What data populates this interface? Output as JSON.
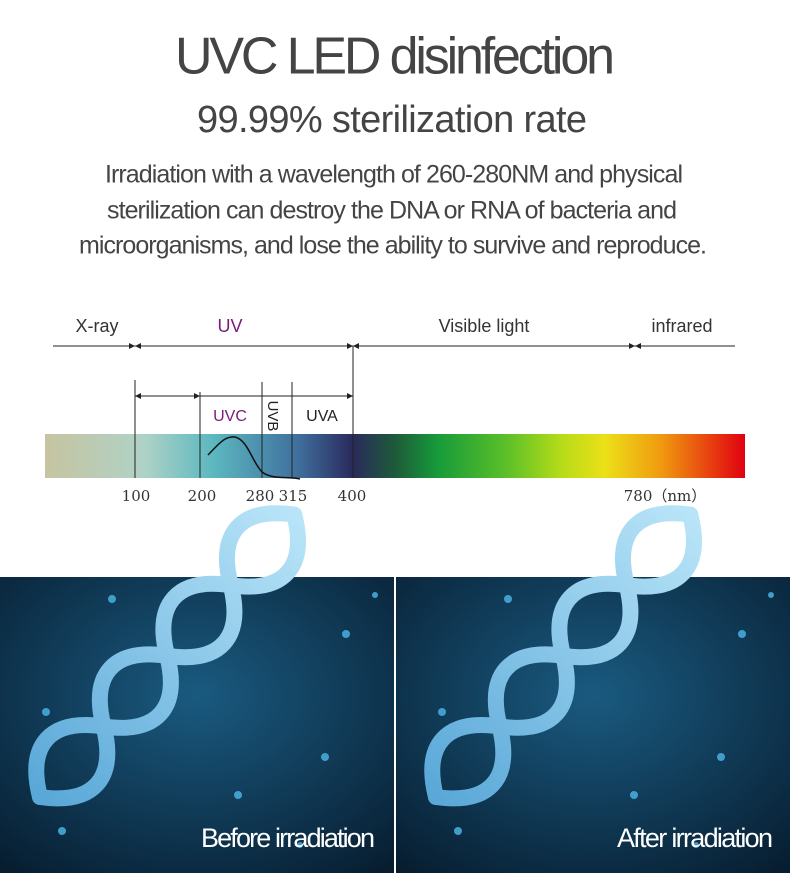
{
  "header": {
    "title": "UVC LED disinfection",
    "subtitle": "99.99% sterilization rate",
    "description": [
      "Irradiation with a wavelength of 260-280NM and physical",
      "sterilization can destroy the DNA or RNA of bacteria and",
      "microorganisms, and lose the ability to survive and reproduce."
    ]
  },
  "spectrum": {
    "regions": [
      "X-ray",
      "UV",
      "Visible light",
      "infrared"
    ],
    "uv_bands": [
      "UVC",
      "UVB",
      "UVA"
    ],
    "scale": [
      "100",
      "200",
      "280",
      "315",
      "400",
      "780（nm）"
    ]
  },
  "images": [
    {
      "caption": "Before irradiation"
    },
    {
      "caption": "After irradiation"
    }
  ]
}
